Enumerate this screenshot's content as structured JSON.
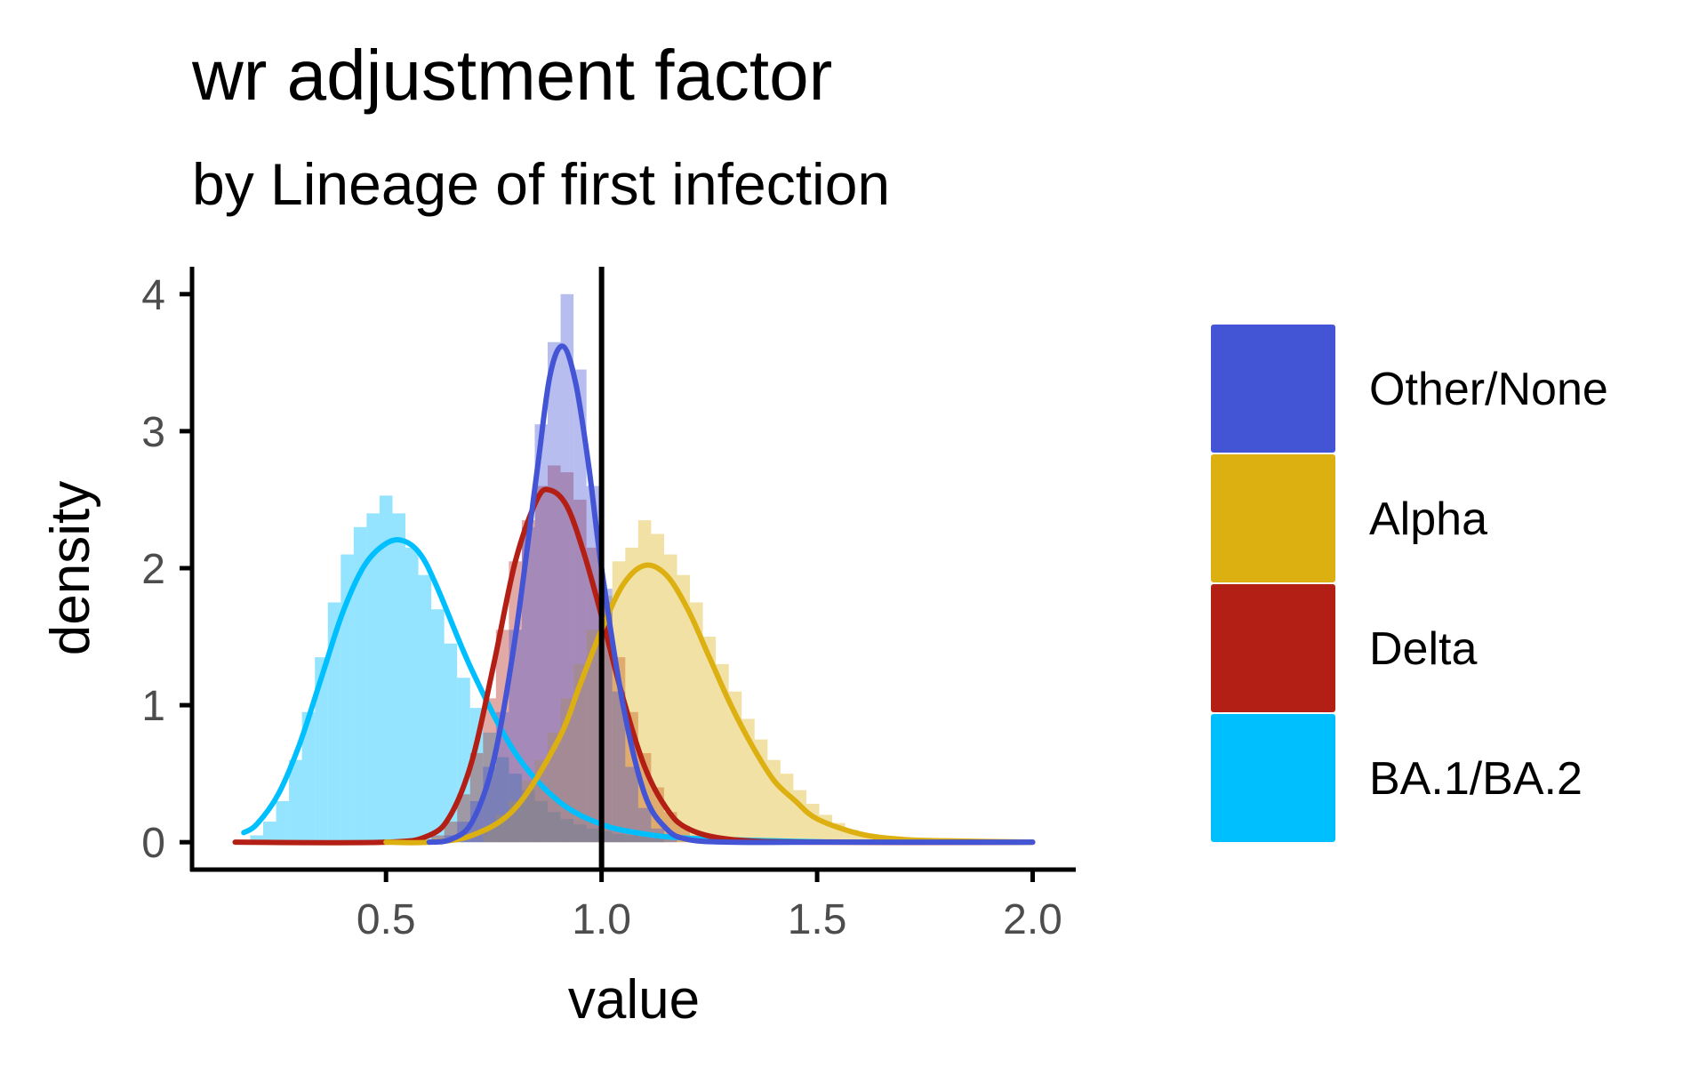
{
  "chart_data": {
    "type": "histogram_density",
    "title": "wr adjustment factor",
    "subtitle": "by Lineage of first infection",
    "xlabel": "value",
    "ylabel": "density",
    "xlim": [
      0.05,
      2.1
    ],
    "ylim": [
      -0.2,
      4.2
    ],
    "x_ticks": [
      0.5,
      1.0,
      1.5,
      2.0
    ],
    "x_tick_labels": [
      "0.5",
      "1.0",
      "1.5",
      "2.0"
    ],
    "y_ticks": [
      0,
      1,
      2,
      3,
      4
    ],
    "y_tick_labels": [
      "0",
      "1",
      "2",
      "3",
      "4"
    ],
    "reference_line_x": 1.0,
    "bin_width": 0.03,
    "grid": false,
    "legend_position": "right",
    "series": [
      {
        "name": "Other/None",
        "color": "#4354D4",
        "bins": [
          [
            0.65,
            0.05
          ],
          [
            0.68,
            0.15
          ],
          [
            0.71,
            0.3
          ],
          [
            0.74,
            0.55
          ],
          [
            0.77,
            0.95
          ],
          [
            0.8,
            1.55
          ],
          [
            0.83,
            2.3
          ],
          [
            0.86,
            3.05
          ],
          [
            0.89,
            3.65
          ],
          [
            0.92,
            4.0
          ],
          [
            0.95,
            3.45
          ],
          [
            0.98,
            2.6
          ],
          [
            1.01,
            1.85
          ],
          [
            1.04,
            1.1
          ],
          [
            1.07,
            0.55
          ],
          [
            1.1,
            0.25
          ],
          [
            1.13,
            0.1
          ],
          [
            1.16,
            0.03
          ]
        ],
        "density": [
          [
            0.6,
            0.0
          ],
          [
            0.65,
            0.02
          ],
          [
            0.7,
            0.15
          ],
          [
            0.75,
            0.6
          ],
          [
            0.8,
            1.5
          ],
          [
            0.85,
            2.7
          ],
          [
            0.88,
            3.4
          ],
          [
            0.91,
            3.62
          ],
          [
            0.94,
            3.35
          ],
          [
            0.97,
            2.75
          ],
          [
            1.0,
            2.0
          ],
          [
            1.05,
            1.0
          ],
          [
            1.1,
            0.35
          ],
          [
            1.15,
            0.1
          ],
          [
            1.2,
            0.02
          ],
          [
            1.3,
            0.0
          ],
          [
            1.5,
            0.0
          ],
          [
            2.0,
            0.0
          ]
        ]
      },
      {
        "name": "Alpha",
        "color": "#DDB012",
        "bins": [
          [
            0.74,
            0.1
          ],
          [
            0.77,
            0.2
          ],
          [
            0.8,
            0.3
          ],
          [
            0.83,
            0.45
          ],
          [
            0.86,
            0.6
          ],
          [
            0.89,
            0.8
          ],
          [
            0.92,
            1.05
          ],
          [
            0.95,
            1.3
          ],
          [
            0.98,
            1.55
          ],
          [
            1.01,
            1.8
          ],
          [
            1.04,
            2.05
          ],
          [
            1.07,
            2.15
          ],
          [
            1.1,
            2.35
          ],
          [
            1.13,
            2.25
          ],
          [
            1.16,
            2.1
          ],
          [
            1.19,
            1.95
          ],
          [
            1.22,
            1.75
          ],
          [
            1.25,
            1.5
          ],
          [
            1.28,
            1.3
          ],
          [
            1.31,
            1.1
          ],
          [
            1.34,
            0.9
          ],
          [
            1.37,
            0.75
          ],
          [
            1.4,
            0.6
          ],
          [
            1.43,
            0.5
          ],
          [
            1.46,
            0.38
          ],
          [
            1.49,
            0.28
          ],
          [
            1.52,
            0.2
          ],
          [
            1.55,
            0.14
          ],
          [
            1.58,
            0.09
          ],
          [
            1.61,
            0.06
          ],
          [
            1.64,
            0.04
          ],
          [
            1.67,
            0.03
          ]
        ],
        "density": [
          [
            0.5,
            0.0
          ],
          [
            0.6,
            0.0
          ],
          [
            0.7,
            0.05
          ],
          [
            0.8,
            0.25
          ],
          [
            0.9,
            0.75
          ],
          [
            0.95,
            1.15
          ],
          [
            1.0,
            1.55
          ],
          [
            1.05,
            1.88
          ],
          [
            1.1,
            2.02
          ],
          [
            1.15,
            1.95
          ],
          [
            1.2,
            1.7
          ],
          [
            1.25,
            1.35
          ],
          [
            1.3,
            1.0
          ],
          [
            1.35,
            0.7
          ],
          [
            1.4,
            0.45
          ],
          [
            1.45,
            0.3
          ],
          [
            1.5,
            0.17
          ],
          [
            1.6,
            0.06
          ],
          [
            1.7,
            0.02
          ],
          [
            1.8,
            0.01
          ],
          [
            2.0,
            0.0
          ]
        ]
      },
      {
        "name": "Delta",
        "color": "#B31F15",
        "bins": [
          [
            0.62,
            0.05
          ],
          [
            0.65,
            0.15
          ],
          [
            0.68,
            0.35
          ],
          [
            0.71,
            0.65
          ],
          [
            0.74,
            1.05
          ],
          [
            0.77,
            1.55
          ],
          [
            0.8,
            2.05
          ],
          [
            0.83,
            2.35
          ],
          [
            0.86,
            2.6
          ],
          [
            0.89,
            2.75
          ],
          [
            0.92,
            2.7
          ],
          [
            0.95,
            2.5
          ],
          [
            0.98,
            2.15
          ],
          [
            1.01,
            1.75
          ],
          [
            1.04,
            1.35
          ],
          [
            1.07,
            0.95
          ],
          [
            1.1,
            0.65
          ],
          [
            1.13,
            0.4
          ],
          [
            1.16,
            0.22
          ],
          [
            1.19,
            0.12
          ],
          [
            1.22,
            0.05
          ]
        ],
        "density": [
          [
            0.15,
            0.0
          ],
          [
            0.5,
            0.0
          ],
          [
            0.6,
            0.05
          ],
          [
            0.65,
            0.2
          ],
          [
            0.7,
            0.6
          ],
          [
            0.75,
            1.3
          ],
          [
            0.8,
            2.05
          ],
          [
            0.85,
            2.5
          ],
          [
            0.88,
            2.57
          ],
          [
            0.92,
            2.45
          ],
          [
            0.96,
            2.1
          ],
          [
            1.0,
            1.65
          ],
          [
            1.05,
            1.05
          ],
          [
            1.1,
            0.55
          ],
          [
            1.15,
            0.25
          ],
          [
            1.2,
            0.1
          ],
          [
            1.3,
            0.02
          ],
          [
            1.5,
            0.0
          ],
          [
            2.0,
            0.0
          ]
        ]
      },
      {
        "name": "BA.1/BA.2",
        "color": "#00BFFF",
        "bins": [
          [
            0.2,
            0.05
          ],
          [
            0.23,
            0.15
          ],
          [
            0.26,
            0.3
          ],
          [
            0.29,
            0.6
          ],
          [
            0.32,
            0.95
          ],
          [
            0.35,
            1.35
          ],
          [
            0.38,
            1.75
          ],
          [
            0.41,
            2.1
          ],
          [
            0.44,
            2.3
          ],
          [
            0.47,
            2.4
          ],
          [
            0.5,
            2.53
          ],
          [
            0.53,
            2.4
          ],
          [
            0.56,
            2.15
          ],
          [
            0.59,
            1.95
          ],
          [
            0.62,
            1.7
          ],
          [
            0.65,
            1.45
          ],
          [
            0.68,
            1.2
          ],
          [
            0.71,
            0.98
          ],
          [
            0.74,
            0.8
          ],
          [
            0.77,
            0.62
          ],
          [
            0.8,
            0.5
          ],
          [
            0.83,
            0.38
          ],
          [
            0.86,
            0.3
          ],
          [
            0.89,
            0.22
          ],
          [
            0.92,
            0.17
          ],
          [
            0.95,
            0.13
          ],
          [
            0.98,
            0.1
          ],
          [
            1.01,
            0.08
          ],
          [
            1.04,
            0.06
          ],
          [
            1.07,
            0.05
          ],
          [
            1.1,
            0.04
          ],
          [
            1.13,
            0.03
          ]
        ],
        "density": [
          [
            0.17,
            0.07
          ],
          [
            0.2,
            0.13
          ],
          [
            0.25,
            0.35
          ],
          [
            0.3,
            0.72
          ],
          [
            0.35,
            1.2
          ],
          [
            0.4,
            1.68
          ],
          [
            0.45,
            2.02
          ],
          [
            0.5,
            2.18
          ],
          [
            0.54,
            2.2
          ],
          [
            0.58,
            2.1
          ],
          [
            0.62,
            1.85
          ],
          [
            0.7,
            1.25
          ],
          [
            0.8,
            0.65
          ],
          [
            0.9,
            0.3
          ],
          [
            1.0,
            0.13
          ],
          [
            1.1,
            0.06
          ],
          [
            1.2,
            0.03
          ],
          [
            1.4,
            0.01
          ],
          [
            1.6,
            0.0
          ],
          [
            2.0,
            0.0
          ]
        ]
      }
    ]
  }
}
